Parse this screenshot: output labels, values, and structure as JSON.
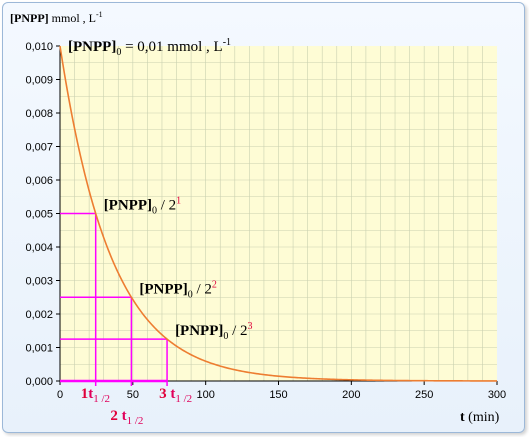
{
  "chart_data": {
    "type": "line",
    "ylabel": {
      "species": "[PNPP]",
      "unit": " mmol , L",
      "unit_sup": "-1"
    },
    "xlabel": {
      "symbol": "t",
      "unit": " (min)"
    },
    "initial_label": {
      "species": "[PNPP]",
      "sub": "0",
      "rest": " = 0,01 mmol , L",
      "sup": "-1"
    },
    "xlim": [
      0,
      300
    ],
    "ylim": [
      0,
      0.01
    ],
    "x_ticks": [
      0,
      50,
      100,
      150,
      200,
      250,
      300
    ],
    "x_tick_labels": [
      "0",
      "50",
      "100",
      "150",
      "200",
      "250",
      "300"
    ],
    "y_ticks": [
      0,
      0.001,
      0.002,
      0.003,
      0.004,
      0.005,
      0.006,
      0.007,
      0.008,
      0.009,
      0.01
    ],
    "y_tick_labels": [
      "0,000",
      "0,001",
      "0,002",
      "0,003",
      "0,004",
      "0,005",
      "0,006",
      "0,007",
      "0,008",
      "0,009",
      "0,010"
    ],
    "grid": true,
    "series": [
      {
        "decay": "exponential",
        "initial_value": 0.01,
        "half_life": 24.5,
        "color": "#ed7d31",
        "x": [
          0,
          10,
          20,
          24.5,
          30,
          40,
          49,
          60,
          73.5,
          80,
          100,
          120,
          150,
          180,
          200,
          250,
          300
        ],
        "y": [
          0.01,
          0.00754,
          0.00568,
          0.005,
          0.00428,
          0.00322,
          0.0025,
          0.00183,
          0.00125,
          0.00104,
          0.00059,
          0.00034,
          0.00014,
          6e-05,
          3e-05,
          1e-05,
          0.0
        ]
      }
    ],
    "annotations": [
      {
        "half_lives": 1,
        "t": 24.5,
        "value": 0.005,
        "label_species": "[PNPP]",
        "label_sub": "0",
        "label_rest": " / 2",
        "label_sup": "1"
      },
      {
        "half_lives": 2,
        "t": 49,
        "value": 0.0025,
        "label_species": "[PNPP]",
        "label_sub": "0",
        "label_rest": " / 2",
        "label_sup": "2"
      },
      {
        "half_lives": 3,
        "t": 73.5,
        "value": 0.00125,
        "label_species": "[PNPP]",
        "label_sub": "0",
        "label_rest": " / 2",
        "label_sup": "3"
      }
    ],
    "half_life_labels": [
      {
        "coef": "1",
        "t": "t",
        "sub": "1 /2"
      },
      {
        "coef": "2",
        "t": " t",
        "sub": "1 /2"
      },
      {
        "coef": "3",
        "t": " t",
        "sub": "1 /2"
      }
    ],
    "colors": {
      "plot_bg": "#fefcd5",
      "grid": "#c9d0b0",
      "curve": "#ed7d31",
      "guides": "#ff00ff",
      "highlight": "#e0003a",
      "half_life_label": "#e0005a"
    }
  }
}
